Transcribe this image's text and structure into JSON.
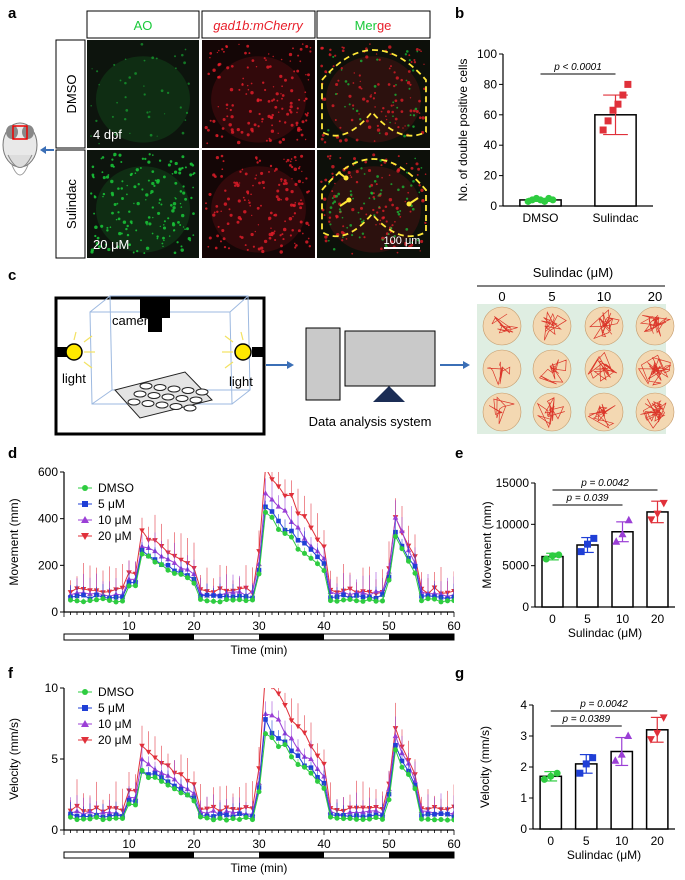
{
  "panels": {
    "a": "a",
    "b": "b",
    "c": "c",
    "d": "d",
    "e": "e",
    "f": "f",
    "g": "g"
  },
  "micro": {
    "col_headers": [
      "AO",
      "gad1b:mCherry",
      "Merge"
    ],
    "row_labels": [
      "DMSO",
      "Sulindac"
    ],
    "age": "4 dpf",
    "dose": "20 μM",
    "scale": "100 μm",
    "colors": {
      "ao": "#19c93a",
      "mcherry": "#e81e2a",
      "outline": "#ffe838"
    }
  },
  "setup": {
    "camera": "camera",
    "light_left": "light",
    "light_right": "light",
    "system": "Data analysis system",
    "plate_title": "Sulindac (μM)",
    "plate_cols": [
      "0",
      "5",
      "10",
      "20"
    ]
  },
  "colors": {
    "dmso": "#2ecc40",
    "d5": "#1f3fd6",
    "d10": "#9b3fd6",
    "d20": "#e0303a",
    "plate_bg": "#dfeee2",
    "track": "#d8231a"
  },
  "chart_data": [
    {
      "id": "b",
      "type": "bar",
      "ylabel": "No. of double positive cells",
      "categories": [
        "DMSO",
        "Sulindac"
      ],
      "values": [
        4,
        60
      ],
      "errors": [
        1,
        13
      ],
      "points": [
        [
          3,
          4,
          5,
          4,
          3,
          5,
          4
        ],
        [
          50,
          56,
          63,
          67,
          73,
          80
        ]
      ],
      "ylim": [
        0,
        100
      ],
      "yticks": [
        0,
        20,
        40,
        60,
        80,
        100
      ],
      "annotation": "p < 0.0001"
    },
    {
      "id": "d",
      "type": "line",
      "ylabel": "Movement (mm)",
      "xlabel": "Time (min)",
      "ylim": [
        0,
        600
      ],
      "yticks": [
        0,
        200,
        400,
        600
      ],
      "xlim": [
        0,
        60
      ],
      "xticks": [
        10,
        20,
        30,
        40,
        50,
        60
      ],
      "legend": [
        "DMSO",
        "5 μM",
        "10 μM",
        "20 μM"
      ],
      "peaks": [
        [
          11.5,
          20.5
        ],
        [
          31,
          40
        ],
        [
          51,
          54.5
        ]
      ],
      "peak_heights": [
        [
          255,
          420,
          330
        ],
        [
          265,
          460,
          350
        ],
        [
          300,
          520,
          400
        ],
        [
          350,
          650,
          420
        ]
      ],
      "baselines": [
        50,
        65,
        78,
        92
      ]
    },
    {
      "id": "e",
      "type": "bar",
      "ylabel": "Movement (mm)",
      "xlabel": "Sulindac (μM)",
      "categories": [
        "0",
        "5",
        "10",
        "20"
      ],
      "values": [
        6100,
        7500,
        9100,
        11500
      ],
      "errors": [
        400,
        900,
        1200,
        1300
      ],
      "points": [
        [
          5800,
          6200,
          6300
        ],
        [
          6700,
          7600,
          8300
        ],
        [
          7900,
          8800,
          10500
        ],
        [
          10600,
          11300,
          12600
        ]
      ],
      "ylim": [
        0,
        15000
      ],
      "yticks": [
        0,
        5000,
        10000,
        15000
      ],
      "annotations": [
        "p = 0.039",
        "p = 0.0042"
      ]
    },
    {
      "id": "f",
      "type": "line",
      "ylabel": "Velocity (mm/s)",
      "xlabel": "Time (min)",
      "ylim": [
        0,
        10
      ],
      "yticks": [
        0,
        5,
        10
      ],
      "xlim": [
        0,
        60
      ],
      "xticks": [
        10,
        20,
        30,
        40,
        50,
        60
      ],
      "legend": [
        "DMSO",
        "5 μM",
        "10 μM",
        "20 μM"
      ],
      "peaks": [
        [
          11.5,
          20.5
        ],
        [
          31,
          40
        ],
        [
          51,
          54.5
        ]
      ],
      "peak_heights": [
        [
          4.3,
          7.2,
          5.6
        ],
        [
          4.5,
          7.6,
          5.9
        ],
        [
          5.0,
          8.6,
          6.6
        ],
        [
          6.0,
          11.0,
          7.2
        ]
      ],
      "baselines": [
        0.8,
        1.0,
        1.2,
        1.5
      ]
    },
    {
      "id": "g",
      "type": "bar",
      "ylabel": "Velocity (mm/s)",
      "xlabel": "Sulindac (μM)",
      "categories": [
        "0",
        "5",
        "10",
        "20"
      ],
      "values": [
        1.7,
        2.1,
        2.5,
        3.2
      ],
      "errors": [
        0.15,
        0.3,
        0.45,
        0.4
      ],
      "points": [
        [
          1.6,
          1.7,
          1.8
        ],
        [
          1.8,
          2.1,
          2.3
        ],
        [
          2.2,
          2.4,
          3.0
        ],
        [
          2.9,
          3.1,
          3.6
        ]
      ],
      "ylim": [
        0,
        4
      ],
      "yticks": [
        0,
        1,
        2,
        3,
        4
      ],
      "annotations": [
        "p = 0.0389",
        "p = 0.0042"
      ]
    }
  ]
}
